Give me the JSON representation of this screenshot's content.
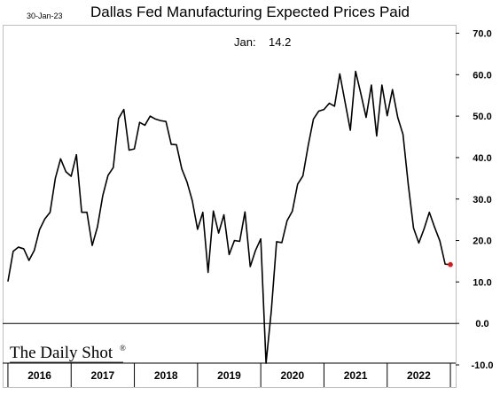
{
  "header": {
    "date": "30-Jan-23",
    "title": "Dallas Fed Manufacturing Expected Prices Paid"
  },
  "annotation": {
    "label": "Jan:",
    "value": "14.2"
  },
  "logo": {
    "text": "The Daily Shot",
    "mark": "®"
  },
  "chart_data": {
    "type": "line",
    "title": "Dallas Fed Manufacturing Expected Prices Paid",
    "xlabel": "",
    "ylabel": "",
    "ylim": [
      -10,
      70
    ],
    "y_ticks": [
      "70.0",
      "60.0",
      "50.0",
      "40.0",
      "30.0",
      "20.0",
      "10.0",
      "0.0",
      "-10.0"
    ],
    "y_tick_values": [
      70,
      60,
      50,
      40,
      30,
      20,
      10,
      0,
      -10
    ],
    "x_years": [
      "2016",
      "2017",
      "2018",
      "2019",
      "2020",
      "2021",
      "2022"
    ],
    "x_start": "2015-12",
    "x_end": "2023-02",
    "y_axis_side": "right",
    "zero_line": true,
    "grid": false,
    "last_point_color": "#e8141c",
    "line_color": "#000000",
    "series": [
      {
        "values": [
          [
            "2016-01",
            10.1
          ],
          [
            "2016-02",
            17.4
          ],
          [
            "2016-03",
            18.4
          ],
          [
            "2016-04",
            18.0
          ],
          [
            "2016-05",
            15.2
          ],
          [
            "2016-06",
            17.6
          ],
          [
            "2016-07",
            22.6
          ],
          [
            "2016-08",
            25.2
          ],
          [
            "2016-09",
            26.8
          ],
          [
            "2016-10",
            35.0
          ],
          [
            "2016-11",
            39.7
          ],
          [
            "2016-12",
            36.6
          ],
          [
            "2017-01",
            35.5
          ],
          [
            "2017-02",
            40.7
          ],
          [
            "2017-03",
            26.8
          ],
          [
            "2017-04",
            26.8
          ],
          [
            "2017-05",
            18.8
          ],
          [
            "2017-06",
            23.3
          ],
          [
            "2017-07",
            30.8
          ],
          [
            "2017-08",
            35.7
          ],
          [
            "2017-09",
            37.6
          ],
          [
            "2017-10",
            49.4
          ],
          [
            "2017-11",
            51.6
          ],
          [
            "2017-12",
            41.8
          ],
          [
            "2018-01",
            42.1
          ],
          [
            "2018-02",
            48.5
          ],
          [
            "2018-03",
            47.8
          ],
          [
            "2018-04",
            50.0
          ],
          [
            "2018-05",
            49.3
          ],
          [
            "2018-06",
            48.9
          ],
          [
            "2018-07",
            48.7
          ],
          [
            "2018-08",
            43.2
          ],
          [
            "2018-09",
            43.1
          ],
          [
            "2018-10",
            37.3
          ],
          [
            "2018-11",
            34.1
          ],
          [
            "2018-12",
            29.6
          ],
          [
            "2019-01",
            22.7
          ],
          [
            "2019-02",
            26.8
          ],
          [
            "2019-03",
            12.3
          ],
          [
            "2019-04",
            27.1
          ],
          [
            "2019-05",
            21.8
          ],
          [
            "2019-06",
            26.2
          ],
          [
            "2019-07",
            16.6
          ],
          [
            "2019-08",
            20.0
          ],
          [
            "2019-09",
            19.8
          ],
          [
            "2019-10",
            26.9
          ],
          [
            "2019-11",
            13.7
          ],
          [
            "2019-12",
            17.6
          ],
          [
            "2020-01",
            20.4
          ],
          [
            "2020-02",
            -9.6
          ],
          [
            "2020-03",
            3.0
          ],
          [
            "2020-04",
            19.7
          ],
          [
            "2020-05",
            19.5
          ],
          [
            "2020-06",
            24.8
          ],
          [
            "2020-07",
            27.1
          ],
          [
            "2020-08",
            33.6
          ],
          [
            "2020-09",
            35.6
          ],
          [
            "2020-10",
            42.9
          ],
          [
            "2020-11",
            49.3
          ],
          [
            "2020-12",
            51.2
          ],
          [
            "2021-01",
            51.6
          ],
          [
            "2021-02",
            53.1
          ],
          [
            "2021-03",
            52.4
          ],
          [
            "2021-04",
            60.2
          ],
          [
            "2021-05",
            53.4
          ],
          [
            "2021-06",
            46.6
          ],
          [
            "2021-07",
            60.8
          ],
          [
            "2021-08",
            55.4
          ],
          [
            "2021-09",
            49.7
          ],
          [
            "2021-10",
            57.5
          ],
          [
            "2021-11",
            45.2
          ],
          [
            "2021-12",
            57.5
          ],
          [
            "2022-01",
            50.1
          ],
          [
            "2022-02",
            56.4
          ],
          [
            "2022-03",
            49.7
          ],
          [
            "2022-04",
            45.6
          ],
          [
            "2022-05",
            33.5
          ],
          [
            "2022-06",
            23.0
          ],
          [
            "2022-07",
            19.4
          ],
          [
            "2022-08",
            22.8
          ],
          [
            "2022-09",
            26.8
          ],
          [
            "2022-10",
            23.2
          ],
          [
            "2022-11",
            19.9
          ],
          [
            "2022-12",
            14.3
          ],
          [
            "2023-01",
            14.2
          ]
        ]
      }
    ]
  }
}
